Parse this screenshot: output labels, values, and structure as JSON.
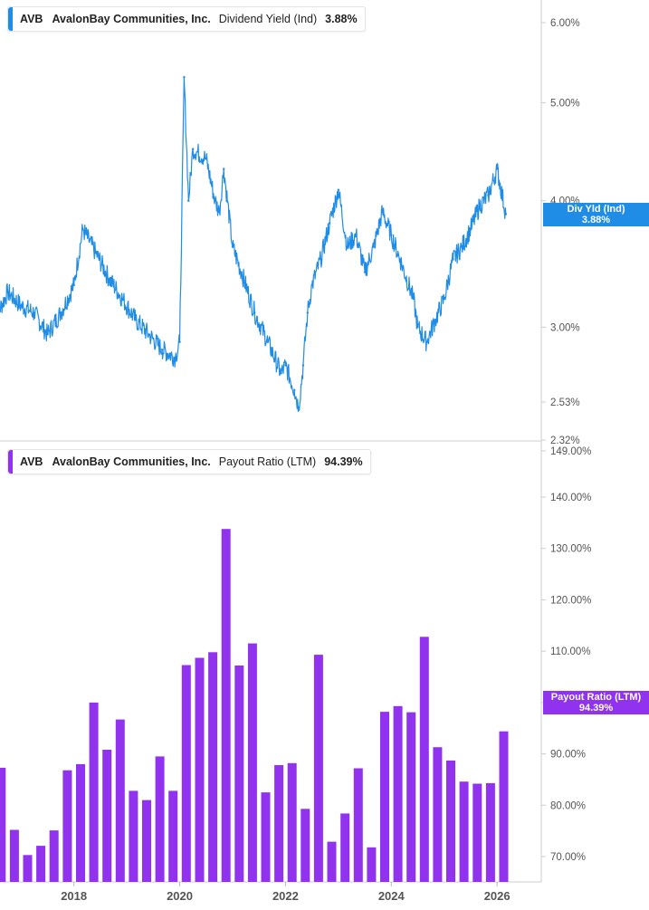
{
  "colors": {
    "yield_line": "#1f8ce6",
    "payout_bar": "#9133ee",
    "axis_text": "#555555"
  },
  "top_legend": {
    "ticker": "AVB",
    "company": "AvalonBay Communities, Inc.",
    "metric": "Dividend Yield (Ind)",
    "value": "3.88%"
  },
  "bottom_legend": {
    "ticker": "AVB",
    "company": "AvalonBay Communities, Inc.",
    "metric": "Payout Ratio (LTM)",
    "value": "94.39%"
  },
  "top_tag": {
    "name": "Div Yld (Ind)",
    "value": "3.88%"
  },
  "bottom_tag": {
    "name": "Payout Ratio (LTM)",
    "value": "94.39%"
  },
  "chart_data": [
    {
      "type": "line",
      "scale": "log",
      "ylim": [
        2.32,
        6.2
      ],
      "y_ticks": [
        "6.00%",
        "5.00%",
        "4.00%",
        "3.00%",
        "2.53%",
        "2.32%"
      ],
      "x_ticks": [
        "2018",
        "2020",
        "2022",
        "2024",
        "2026"
      ],
      "series": [
        {
          "name": "Dividend Yield (Ind)",
          "x": [
            "2016-07",
            "2016-10",
            "2017-01",
            "2017-04",
            "2017-07",
            "2017-10",
            "2018-01",
            "2018-03",
            "2018-06",
            "2018-09",
            "2018-12",
            "2019-03",
            "2019-06",
            "2019-09",
            "2019-12",
            "2020-01",
            "2020-02",
            "2020-03",
            "2020-04",
            "2020-07",
            "2020-09",
            "2020-10",
            "2020-11",
            "2021-01",
            "2021-03",
            "2021-06",
            "2021-09",
            "2021-12",
            "2022-01",
            "2022-03",
            "2022-04",
            "2022-05",
            "2022-06",
            "2022-07",
            "2022-09",
            "2022-11",
            "2023-01",
            "2023-03",
            "2023-05",
            "2023-07",
            "2023-09",
            "2023-11",
            "2024-01",
            "2024-03",
            "2024-06",
            "2024-07",
            "2024-09",
            "2024-11",
            "2025-01",
            "2025-03",
            "2025-05",
            "2025-07",
            "2025-09",
            "2025-11",
            "2026-01",
            "2026-03"
          ],
          "values": [
            3.05,
            3.25,
            3.15,
            3.1,
            2.95,
            3.1,
            3.3,
            3.75,
            3.55,
            3.35,
            3.2,
            3.05,
            2.95,
            2.85,
            2.8,
            2.9,
            5.3,
            4.0,
            4.5,
            4.4,
            4.0,
            3.9,
            4.3,
            3.6,
            3.4,
            3.1,
            2.9,
            2.7,
            2.75,
            2.6,
            2.5,
            2.75,
            3.1,
            3.3,
            3.5,
            3.8,
            4.1,
            3.6,
            3.7,
            3.4,
            3.6,
            3.9,
            3.7,
            3.5,
            3.2,
            3.0,
            2.9,
            3.05,
            3.2,
            3.5,
            3.6,
            3.75,
            3.95,
            4.05,
            4.3,
            3.88
          ]
        }
      ]
    },
    {
      "type": "bar",
      "ylim": [
        66,
        149
      ],
      "y_ticks": [
        "149.00%",
        "140.00%",
        "130.00%",
        "120.00%",
        "110.00%",
        "100.00%",
        "90.00%",
        "80.00%",
        "70.00%"
      ],
      "x_ticks": [
        "2018",
        "2020",
        "2022",
        "2024",
        "2026"
      ],
      "series": [
        {
          "name": "Payout Ratio (LTM)",
          "x": [
            "2016-Q3",
            "2016-Q4",
            "2017-Q1",
            "2017-Q2",
            "2017-Q3",
            "2017-Q4",
            "2018-Q1",
            "2018-Q2",
            "2018-Q3",
            "2018-Q4",
            "2019-Q1",
            "2019-Q2",
            "2019-Q3",
            "2019-Q4",
            "2020-Q1",
            "2020-Q2",
            "2020-Q3",
            "2020-Q4",
            "2021-Q1",
            "2021-Q2",
            "2021-Q3",
            "2021-Q4",
            "2022-Q1",
            "2022-Q2",
            "2022-Q3",
            "2022-Q4",
            "2023-Q1",
            "2023-Q2",
            "2023-Q3",
            "2023-Q4",
            "2024-Q1",
            "2024-Q2",
            "2024-Q3",
            "2024-Q4",
            "2025-Q1",
            "2025-Q2",
            "2025-Q3",
            "2025-Q4",
            "2026-Q1"
          ],
          "values": [
            87.3,
            75.2,
            70.3,
            72.1,
            75.1,
            86.8,
            88.0,
            100.0,
            90.8,
            96.7,
            82.8,
            81.0,
            89.5,
            82.8,
            107.3,
            108.7,
            109.8,
            133.8,
            107.2,
            111.5,
            82.5,
            87.8,
            88.2,
            79.3,
            109.3,
            72.9,
            78.4,
            87.2,
            71.8,
            98.2,
            99.3,
            98.1,
            112.8,
            91.3,
            88.7,
            84.6,
            84.2,
            84.3,
            94.39
          ]
        }
      ]
    }
  ]
}
